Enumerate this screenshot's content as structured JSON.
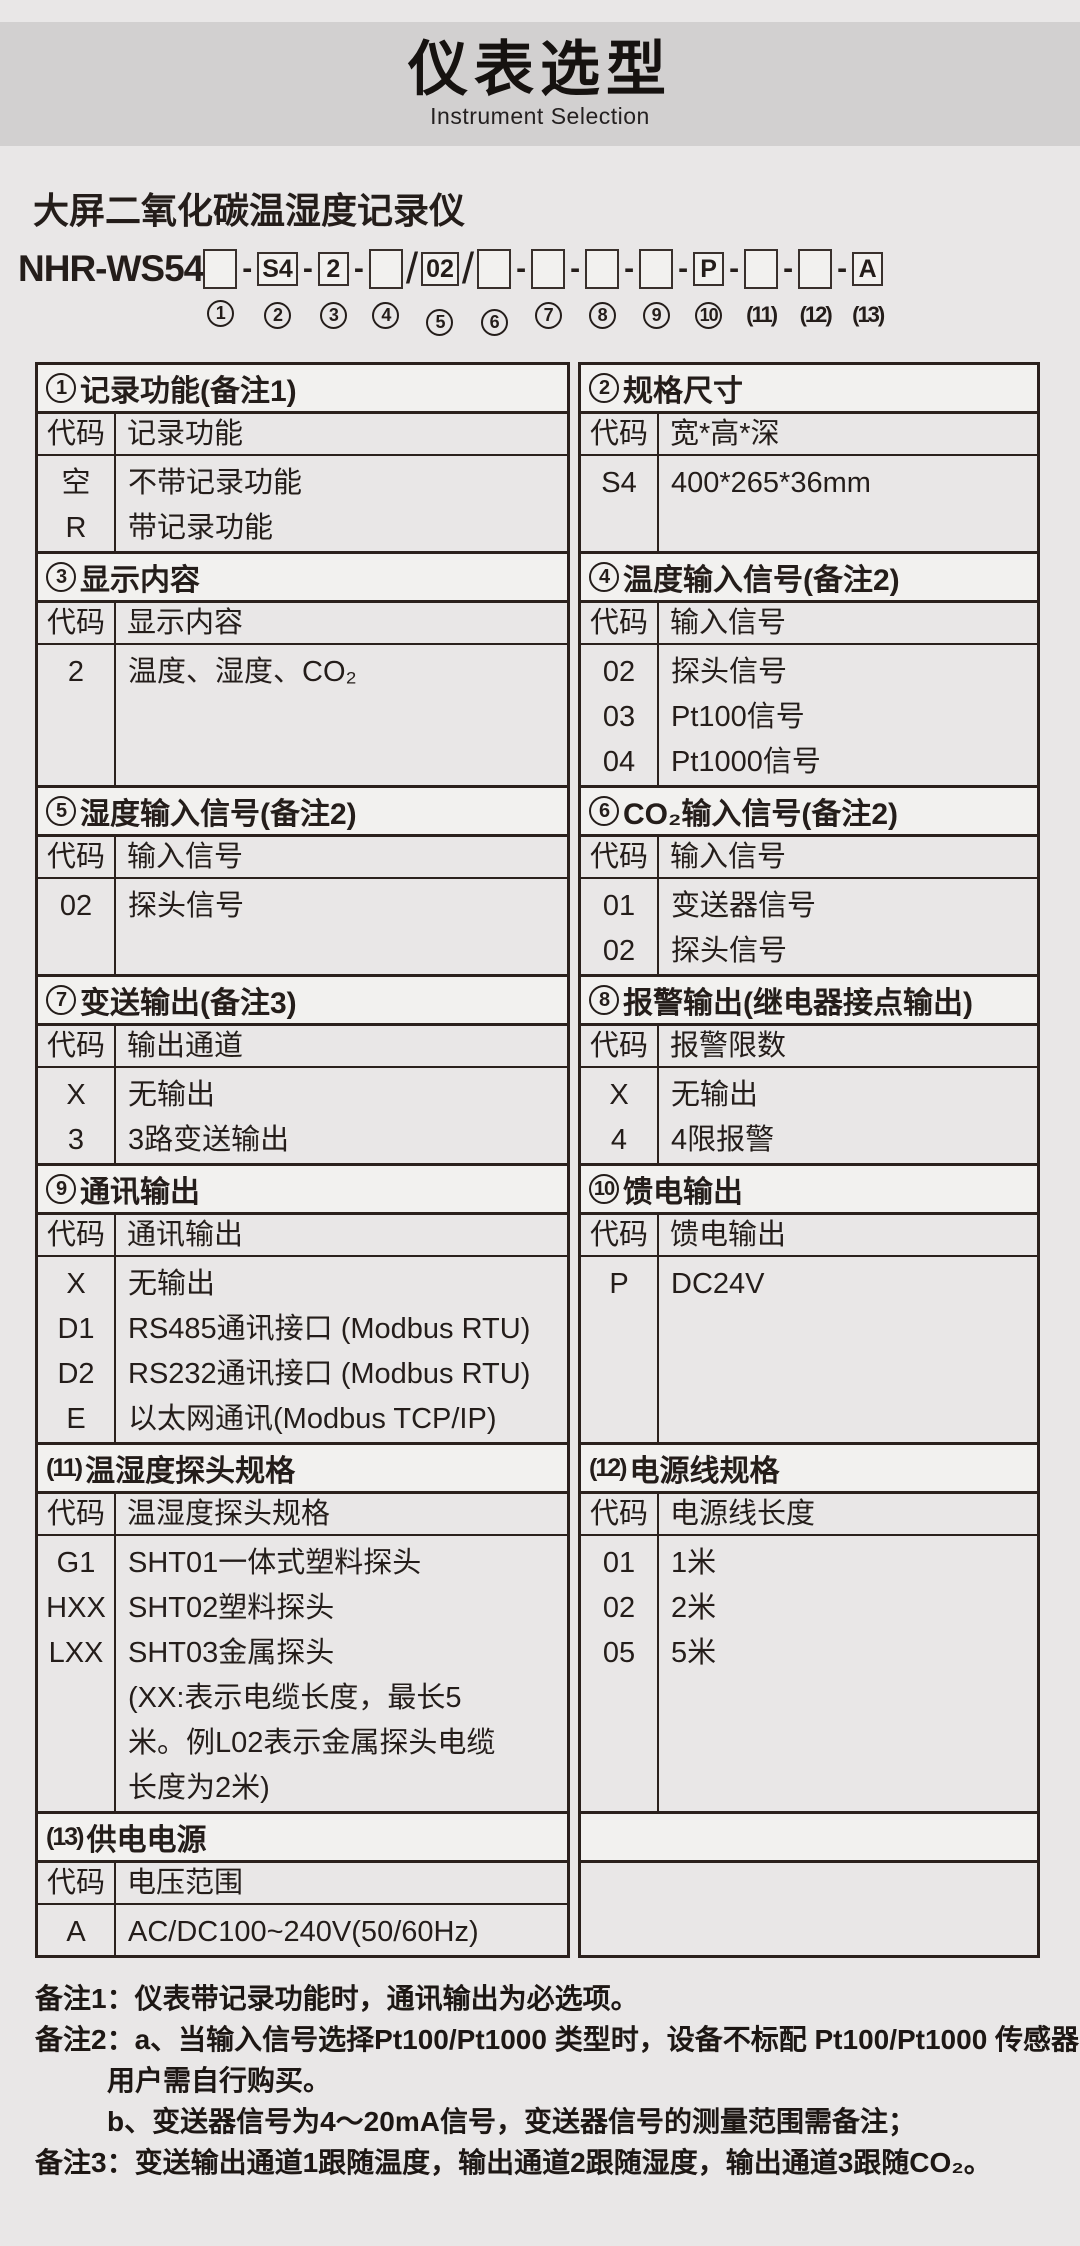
{
  "header": {
    "title": "仪表选型",
    "subtitle": "Instrument Selection"
  },
  "product": {
    "name": "大屏二氧化碳温湿度记录仪"
  },
  "model": {
    "prefix": "NHR-WS54",
    "segments": [
      {
        "sep": "",
        "value": "",
        "num": "1",
        "circled": true
      },
      {
        "sep": "-",
        "value": "S4",
        "num": "2",
        "circled": true
      },
      {
        "sep": "-",
        "value": "2",
        "num": "3",
        "circled": true
      },
      {
        "sep": "-",
        "value": "",
        "num": "4",
        "circled": true
      },
      {
        "sep": "/",
        "value": "02",
        "num": "5",
        "circled": true
      },
      {
        "sep": "/",
        "value": "",
        "num": "6",
        "circled": true
      },
      {
        "sep": "-",
        "value": "",
        "num": "7",
        "circled": true
      },
      {
        "sep": "-",
        "value": "",
        "num": "8",
        "circled": true
      },
      {
        "sep": "-",
        "value": "",
        "num": "9",
        "circled": true
      },
      {
        "sep": "-",
        "value": "P",
        "num": "10",
        "circled": true
      },
      {
        "sep": "-",
        "value": "",
        "num": "(11)",
        "circled": false
      },
      {
        "sep": "-",
        "value": "",
        "num": "(12)",
        "circled": false
      },
      {
        "sep": "-",
        "value": "A",
        "num": "(13)",
        "circled": false
      }
    ]
  },
  "table": {
    "code_header": "代码",
    "sections": [
      {
        "min_h": 102,
        "left": {
          "num": "1",
          "circled": true,
          "title": "记录功能(备注1)",
          "desc_header": "记录功能",
          "rows": [
            {
              "code": "空",
              "desc": "不带记录功能"
            },
            {
              "code": "R",
              "desc": "带记录功能"
            }
          ]
        },
        "right": {
          "num": "2",
          "circled": true,
          "title": "规格尺寸",
          "desc_header": "宽*高*深",
          "rows": [
            {
              "code": "S4",
              "desc": "400*265*36mm"
            }
          ]
        }
      },
      {
        "min_h": 148,
        "left": {
          "num": "3",
          "circled": true,
          "title": "显示内容",
          "desc_header": "显示内容",
          "rows": [
            {
              "code": "2",
              "desc": "温度、湿度、CO₂"
            }
          ]
        },
        "right": {
          "num": "4",
          "circled": true,
          "title": "温度输入信号(备注2)",
          "desc_header": "输入信号",
          "rows": [
            {
              "code": "02",
              "desc": "探头信号"
            },
            {
              "code": "03",
              "desc": "Pt100信号"
            },
            {
              "code": "04",
              "desc": "Pt1000信号"
            }
          ]
        }
      },
      {
        "min_h": 100,
        "left": {
          "num": "5",
          "circled": true,
          "title": "湿度输入信号(备注2)",
          "desc_header": "输入信号",
          "rows": [
            {
              "code": "02",
              "desc": "探头信号"
            }
          ]
        },
        "right": {
          "num": "6",
          "circled": true,
          "title": "CO₂输入信号(备注2)",
          "desc_header": "输入信号",
          "rows": [
            {
              "code": "01",
              "desc": "变送器信号"
            },
            {
              "code": "02",
              "desc": "探头信号"
            }
          ]
        }
      },
      {
        "min_h": 98,
        "left": {
          "num": "7",
          "circled": true,
          "title": "变送输出(备注3)",
          "desc_header": "输出通道",
          "rows": [
            {
              "code": "X",
              "desc": "无输出"
            },
            {
              "code": "3",
              "desc": "3路变送输出"
            }
          ]
        },
        "right": {
          "num": "8",
          "circled": true,
          "title": "报警输出(继电器接点输出)",
          "desc_header": "报警限数",
          "rows": [
            {
              "code": "X",
              "desc": "无输出"
            },
            {
              "code": "4",
              "desc": "4限报警"
            }
          ]
        }
      },
      {
        "min_h": 196,
        "left": {
          "num": "9",
          "circled": true,
          "title": "通讯输出",
          "desc_header": "通讯输出",
          "rows": [
            {
              "code": "X",
              "desc": "无输出"
            },
            {
              "code": "D1",
              "desc": "RS485通讯接口 (Modbus RTU)"
            },
            {
              "code": "D2",
              "desc": "RS232通讯接口 (Modbus RTU)"
            },
            {
              "code": "E",
              "desc": "以太网通讯(Modbus TCP/IP)"
            }
          ]
        },
        "right": {
          "num": "10",
          "circled": true,
          "title": "馈电输出",
          "desc_header": "馈电输出",
          "rows": [
            {
              "code": "P",
              "desc": "DC24V"
            }
          ]
        }
      },
      {
        "min_h": 316,
        "left": {
          "num": "(11)",
          "circled": false,
          "title": "温湿度探头规格",
          "desc_header": "温湿度探头规格",
          "rows": [
            {
              "code": "G1",
              "desc": "SHT01一体式塑料探头"
            },
            {
              "code": "HXX",
              "desc": "SHT02塑料探头"
            },
            {
              "code": "LXX",
              "desc": "SHT03金属探头"
            },
            {
              "code": "",
              "desc": "(XX:表示电缆长度，最长5"
            },
            {
              "code": "",
              "desc": "米。例L02表示金属探头电缆"
            },
            {
              "code": "",
              "desc": "长度为2米)"
            }
          ]
        },
        "right": {
          "num": "(12)",
          "circled": false,
          "title": "电源线规格",
          "desc_header": "电源线长度",
          "rows": [
            {
              "code": "01",
              "desc": "1米"
            },
            {
              "code": "02",
              "desc": "2米"
            },
            {
              "code": "05",
              "desc": "5米"
            }
          ]
        }
      },
      {
        "min_h": 70,
        "left": {
          "num": "(13)",
          "circled": false,
          "title": "供电电源",
          "desc_header": "电压范围",
          "rows": [
            {
              "code": "A",
              "desc": "AC/DC100~240V(50/60Hz)"
            }
          ]
        },
        "right": {
          "empty": true
        }
      }
    ]
  },
  "notes": [
    {
      "text": "备注1：仪表带记录功能时，通讯输出为必选项。",
      "indent": false
    },
    {
      "text": "备注2：a、当输入信号选择Pt100/Pt1000 类型时，设备不标配 Pt100/Pt1000 传感器，",
      "indent": false
    },
    {
      "text": "用户需自行购买。",
      "indent": true
    },
    {
      "text": "b、变送器信号为4～20mA信号，变送器信号的测量范围需备注；",
      "indent": true
    },
    {
      "text": "备注3：变送输出通道1跟随温度，输出通道2跟随湿度，输出通道3跟随CO₂。",
      "indent": false
    }
  ]
}
